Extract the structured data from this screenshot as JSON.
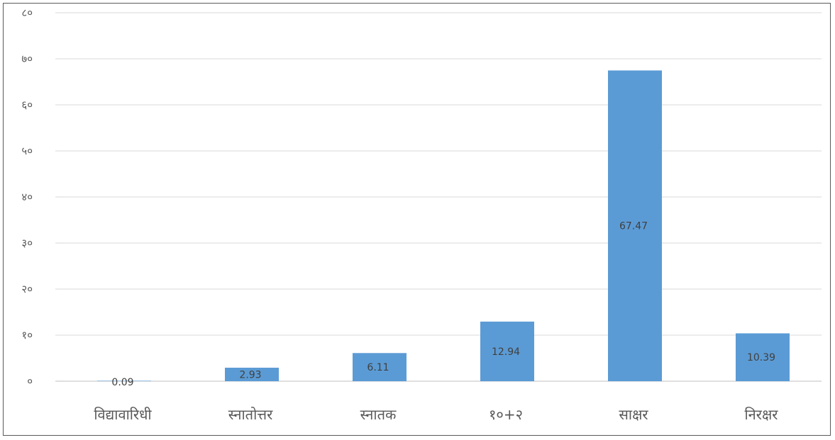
{
  "chart_data": {
    "type": "bar",
    "categories": [
      "विद्यावारिधी",
      "स्नातोत्तर",
      "स्नातक",
      "१०+२",
      "साक्षर",
      "निरक्षर"
    ],
    "values": [
      0.09,
      2.93,
      6.11,
      12.94,
      67.47,
      10.39
    ],
    "value_labels": [
      "0.09",
      "2.93",
      "6.11",
      "12.94",
      "67.47",
      "10.39"
    ],
    "ylim": [
      0,
      80
    ],
    "yticks": [
      0,
      10,
      20,
      30,
      40,
      50,
      60,
      70,
      80
    ],
    "ytick_labels": [
      "०",
      "१०",
      "२०",
      "३०",
      "४०",
      "५०",
      "६०",
      "७०",
      "८०"
    ],
    "title": "",
    "xlabel": "",
    "ylabel": "",
    "grid": true,
    "legend": "none",
    "bar_color": "#5b9bd5",
    "grid_color": "#d9d9d9"
  }
}
